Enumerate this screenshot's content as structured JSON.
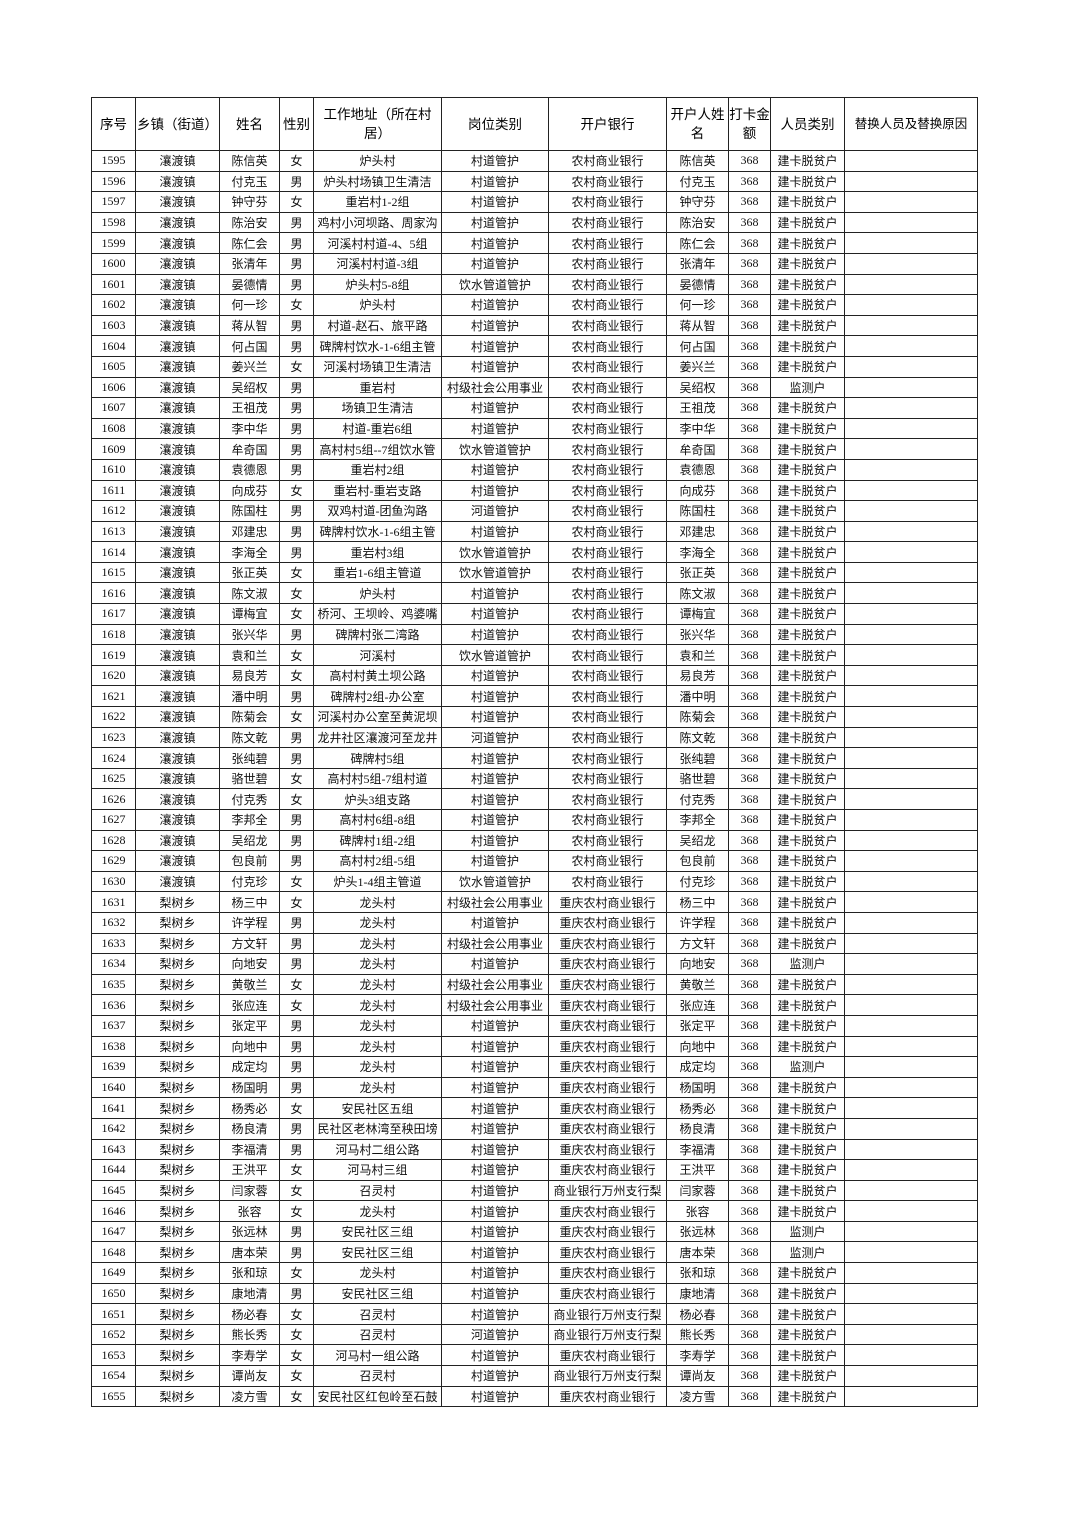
{
  "headers": [
    "序号",
    "乡镇（街道）",
    "姓名",
    "性别",
    "工作地址（所在村居）",
    "岗位类别",
    "开户银行",
    "开户人姓名",
    "打卡金额",
    "人员类别",
    "替换人员及替换原因"
  ],
  "rows": [
    [
      "1595",
      "瀼渡镇",
      "陈信英",
      "女",
      "炉头村",
      "村道管护",
      "农村商业银行",
      "陈信英",
      "368",
      "建卡脱贫户",
      ""
    ],
    [
      "1596",
      "瀼渡镇",
      "付克玉",
      "男",
      "炉头村场镇卫生清洁",
      "村道管护",
      "农村商业银行",
      "付克玉",
      "368",
      "建卡脱贫户",
      ""
    ],
    [
      "1597",
      "瀼渡镇",
      "钟守芬",
      "女",
      "重岩村1-2组",
      "村道管护",
      "农村商业银行",
      "钟守芬",
      "368",
      "建卡脱贫户",
      ""
    ],
    [
      "1598",
      "瀼渡镇",
      "陈治安",
      "男",
      "鸡村小河坝路、周家沟",
      "村道管护",
      "农村商业银行",
      "陈治安",
      "368",
      "建卡脱贫户",
      ""
    ],
    [
      "1599",
      "瀼渡镇",
      "陈仁会",
      "男",
      "河溪村村道-4、5组",
      "村道管护",
      "农村商业银行",
      "陈仁会",
      "368",
      "建卡脱贫户",
      ""
    ],
    [
      "1600",
      "瀼渡镇",
      "张清年",
      "男",
      "河溪村村道-3组",
      "村道管护",
      "农村商业银行",
      "张清年",
      "368",
      "建卡脱贫户",
      ""
    ],
    [
      "1601",
      "瀼渡镇",
      "晏德情",
      "男",
      "炉头村5-8组",
      "饮水管道管护",
      "农村商业银行",
      "晏德情",
      "368",
      "建卡脱贫户",
      ""
    ],
    [
      "1602",
      "瀼渡镇",
      "何一珍",
      "女",
      "炉头村",
      "村道管护",
      "农村商业银行",
      "何一珍",
      "368",
      "建卡脱贫户",
      ""
    ],
    [
      "1603",
      "瀼渡镇",
      "蒋从智",
      "男",
      "村道-赵石、旅平路",
      "村道管护",
      "农村商业银行",
      "蒋从智",
      "368",
      "建卡脱贫户",
      ""
    ],
    [
      "1604",
      "瀼渡镇",
      "何占国",
      "男",
      "碑牌村饮水-1-6组主管",
      "村道管护",
      "农村商业银行",
      "何占国",
      "368",
      "建卡脱贫户",
      ""
    ],
    [
      "1605",
      "瀼渡镇",
      "姜兴兰",
      "女",
      "河溪村场镇卫生清洁",
      "村道管护",
      "农村商业银行",
      "姜兴兰",
      "368",
      "建卡脱贫户",
      ""
    ],
    [
      "1606",
      "瀼渡镇",
      "吴绍权",
      "男",
      "重岩村",
      "村级社会公用事业",
      "农村商业银行",
      "吴绍权",
      "368",
      "监测户",
      ""
    ],
    [
      "1607",
      "瀼渡镇",
      "王祖茂",
      "男",
      "场镇卫生清洁",
      "村道管护",
      "农村商业银行",
      "王祖茂",
      "368",
      "建卡脱贫户",
      ""
    ],
    [
      "1608",
      "瀼渡镇",
      "李中华",
      "男",
      "村道-重岩6组",
      "村道管护",
      "农村商业银行",
      "李中华",
      "368",
      "建卡脱贫户",
      ""
    ],
    [
      "1609",
      "瀼渡镇",
      "牟奇国",
      "男",
      "高村村5组--7组饮水管",
      "饮水管道管护",
      "农村商业银行",
      "牟奇国",
      "368",
      "建卡脱贫户",
      ""
    ],
    [
      "1610",
      "瀼渡镇",
      "袁德恩",
      "男",
      "重岩村2组",
      "村道管护",
      "农村商业银行",
      "袁德恩",
      "368",
      "建卡脱贫户",
      ""
    ],
    [
      "1611",
      "瀼渡镇",
      "向成芬",
      "女",
      "重岩村-重岩支路",
      "村道管护",
      "农村商业银行",
      "向成芬",
      "368",
      "建卡脱贫户",
      ""
    ],
    [
      "1612",
      "瀼渡镇",
      "陈国柱",
      "男",
      "双鸡村道-团鱼沟路",
      "河道管护",
      "农村商业银行",
      "陈国柱",
      "368",
      "建卡脱贫户",
      ""
    ],
    [
      "1613",
      "瀼渡镇",
      "邓建忠",
      "男",
      "碑牌村饮水-1-6组主管",
      "村道管护",
      "农村商业银行",
      "邓建忠",
      "368",
      "建卡脱贫户",
      ""
    ],
    [
      "1614",
      "瀼渡镇",
      "李海全",
      "男",
      "重岩村3组",
      "饮水管道管护",
      "农村商业银行",
      "李海全",
      "368",
      "建卡脱贫户",
      ""
    ],
    [
      "1615",
      "瀼渡镇",
      "张正英",
      "女",
      "重岩1-6组主管道",
      "饮水管道管护",
      "农村商业银行",
      "张正英",
      "368",
      "建卡脱贫户",
      ""
    ],
    [
      "1616",
      "瀼渡镇",
      "陈文淑",
      "女",
      "炉头村",
      "村道管护",
      "农村商业银行",
      "陈文淑",
      "368",
      "建卡脱贫户",
      ""
    ],
    [
      "1617",
      "瀼渡镇",
      "谭梅宜",
      "女",
      "桥河、王坝岭、鸡婆嘴",
      "村道管护",
      "农村商业银行",
      "谭梅宜",
      "368",
      "建卡脱贫户",
      ""
    ],
    [
      "1618",
      "瀼渡镇",
      "张兴华",
      "男",
      "碑牌村张二湾路",
      "村道管护",
      "农村商业银行",
      "张兴华",
      "368",
      "建卡脱贫户",
      ""
    ],
    [
      "1619",
      "瀼渡镇",
      "袁和兰",
      "女",
      "河溪村",
      "饮水管道管护",
      "农村商业银行",
      "袁和兰",
      "368",
      "建卡脱贫户",
      ""
    ],
    [
      "1620",
      "瀼渡镇",
      "易良芳",
      "女",
      "高村村黄土坝公路",
      "村道管护",
      "农村商业银行",
      "易良芳",
      "368",
      "建卡脱贫户",
      ""
    ],
    [
      "1621",
      "瀼渡镇",
      "潘中明",
      "男",
      "碑牌村2组-办公室",
      "村道管护",
      "农村商业银行",
      "潘中明",
      "368",
      "建卡脱贫户",
      ""
    ],
    [
      "1622",
      "瀼渡镇",
      "陈菊会",
      "女",
      "河溪村办公室至黄泥坝",
      "村道管护",
      "农村商业银行",
      "陈菊会",
      "368",
      "建卡脱贫户",
      ""
    ],
    [
      "1623",
      "瀼渡镇",
      "陈文乾",
      "男",
      "龙井社区瀼渡河至龙井",
      "河道管护",
      "农村商业银行",
      "陈文乾",
      "368",
      "建卡脱贫户",
      ""
    ],
    [
      "1624",
      "瀼渡镇",
      "张纯碧",
      "男",
      "碑牌村5组",
      "村道管护",
      "农村商业银行",
      "张纯碧",
      "368",
      "建卡脱贫户",
      ""
    ],
    [
      "1625",
      "瀼渡镇",
      "骆世碧",
      "女",
      "高村村5组-7组村道",
      "村道管护",
      "农村商业银行",
      "骆世碧",
      "368",
      "建卡脱贫户",
      ""
    ],
    [
      "1626",
      "瀼渡镇",
      "付克秀",
      "女",
      "炉头3组支路",
      "村道管护",
      "农村商业银行",
      "付克秀",
      "368",
      "建卡脱贫户",
      ""
    ],
    [
      "1627",
      "瀼渡镇",
      "李邦全",
      "男",
      "高村村6组-8组",
      "村道管护",
      "农村商业银行",
      "李邦全",
      "368",
      "建卡脱贫户",
      ""
    ],
    [
      "1628",
      "瀼渡镇",
      "吴绍龙",
      "男",
      "碑牌村1组-2组",
      "村道管护",
      "农村商业银行",
      "吴绍龙",
      "368",
      "建卡脱贫户",
      ""
    ],
    [
      "1629",
      "瀼渡镇",
      "包良前",
      "男",
      "高村村2组-5组",
      "村道管护",
      "农村商业银行",
      "包良前",
      "368",
      "建卡脱贫户",
      ""
    ],
    [
      "1630",
      "瀼渡镇",
      "付克珍",
      "女",
      "炉头1-4组主管道",
      "饮水管道管护",
      "农村商业银行",
      "付克珍",
      "368",
      "建卡脱贫户",
      ""
    ],
    [
      "1631",
      "梨树乡",
      "杨三中",
      "女",
      "龙头村",
      "村级社会公用事业",
      "重庆农村商业银行",
      "杨三中",
      "368",
      "建卡脱贫户",
      ""
    ],
    [
      "1632",
      "梨树乡",
      "许学程",
      "男",
      "龙头村",
      "村道管护",
      "重庆农村商业银行",
      "许学程",
      "368",
      "建卡脱贫户",
      ""
    ],
    [
      "1633",
      "梨树乡",
      "方文轩",
      "男",
      "龙头村",
      "村级社会公用事业",
      "重庆农村商业银行",
      "方文轩",
      "368",
      "建卡脱贫户",
      ""
    ],
    [
      "1634",
      "梨树乡",
      "向地安",
      "男",
      "龙头村",
      "村道管护",
      "重庆农村商业银行",
      "向地安",
      "368",
      "监测户",
      ""
    ],
    [
      "1635",
      "梨树乡",
      "黄敬兰",
      "女",
      "龙头村",
      "村级社会公用事业",
      "重庆农村商业银行",
      "黄敬兰",
      "368",
      "建卡脱贫户",
      ""
    ],
    [
      "1636",
      "梨树乡",
      "张应连",
      "女",
      "龙头村",
      "村级社会公用事业",
      "重庆农村商业银行",
      "张应连",
      "368",
      "建卡脱贫户",
      ""
    ],
    [
      "1637",
      "梨树乡",
      "张定平",
      "男",
      "龙头村",
      "村道管护",
      "重庆农村商业银行",
      "张定平",
      "368",
      "建卡脱贫户",
      ""
    ],
    [
      "1638",
      "梨树乡",
      "向地中",
      "男",
      "龙头村",
      "村道管护",
      "重庆农村商业银行",
      "向地中",
      "368",
      "建卡脱贫户",
      ""
    ],
    [
      "1639",
      "梨树乡",
      "成定均",
      "男",
      "龙头村",
      "村道管护",
      "重庆农村商业银行",
      "成定均",
      "368",
      "监测户",
      ""
    ],
    [
      "1640",
      "梨树乡",
      "杨国明",
      "男",
      "龙头村",
      "村道管护",
      "重庆农村商业银行",
      "杨国明",
      "368",
      "建卡脱贫户",
      ""
    ],
    [
      "1641",
      "梨树乡",
      "杨秀必",
      "女",
      "安民社区五组",
      "村道管护",
      "重庆农村商业银行",
      "杨秀必",
      "368",
      "建卡脱贫户",
      ""
    ],
    [
      "1642",
      "梨树乡",
      "杨良清",
      "男",
      "民社区老林湾至秧田塝",
      "村道管护",
      "重庆农村商业银行",
      "杨良清",
      "368",
      "建卡脱贫户",
      ""
    ],
    [
      "1643",
      "梨树乡",
      "李福清",
      "男",
      "河马村二组公路",
      "村道管护",
      "重庆农村商业银行",
      "李福清",
      "368",
      "建卡脱贫户",
      ""
    ],
    [
      "1644",
      "梨树乡",
      "王洪平",
      "女",
      "河马村三组",
      "村道管护",
      "重庆农村商业银行",
      "王洪平",
      "368",
      "建卡脱贫户",
      ""
    ],
    [
      "1645",
      "梨树乡",
      "闫家蓉",
      "女",
      "召灵村",
      "村道管护",
      "商业银行万州支行梨",
      "闫家蓉",
      "368",
      "建卡脱贫户",
      ""
    ],
    [
      "1646",
      "梨树乡",
      "张容",
      "女",
      "龙头村",
      "村道管护",
      "重庆农村商业银行",
      "张容",
      "368",
      "建卡脱贫户",
      ""
    ],
    [
      "1647",
      "梨树乡",
      "张远林",
      "男",
      "安民社区三组",
      "村道管护",
      "重庆农村商业银行",
      "张远林",
      "368",
      "监测户",
      ""
    ],
    [
      "1648",
      "梨树乡",
      "唐本荣",
      "男",
      "安民社区三组",
      "村道管护",
      "重庆农村商业银行",
      "唐本荣",
      "368",
      "监测户",
      ""
    ],
    [
      "1649",
      "梨树乡",
      "张和琼",
      "女",
      "龙头村",
      "村道管护",
      "重庆农村商业银行",
      "张和琼",
      "368",
      "建卡脱贫户",
      ""
    ],
    [
      "1650",
      "梨树乡",
      "康地清",
      "男",
      "安民社区三组",
      "村道管护",
      "重庆农村商业银行",
      "康地清",
      "368",
      "建卡脱贫户",
      ""
    ],
    [
      "1651",
      "梨树乡",
      "杨必春",
      "女",
      "召灵村",
      "村道管护",
      "商业银行万州支行梨",
      "杨必春",
      "368",
      "建卡脱贫户",
      ""
    ],
    [
      "1652",
      "梨树乡",
      "熊长秀",
      "女",
      "召灵村",
      "河道管护",
      "商业银行万州支行梨",
      "熊长秀",
      "368",
      "建卡脱贫户",
      ""
    ],
    [
      "1653",
      "梨树乡",
      "李寿学",
      "女",
      "河马村一组公路",
      "村道管护",
      "重庆农村商业银行",
      "李寿学",
      "368",
      "建卡脱贫户",
      ""
    ],
    [
      "1654",
      "梨树乡",
      "谭尚友",
      "女",
      "召灵村",
      "村道管护",
      "商业银行万州支行梨",
      "谭尚友",
      "368",
      "建卡脱贫户",
      ""
    ],
    [
      "1655",
      "梨树乡",
      "凌方雪",
      "女",
      "安民社区红包岭至石鼓",
      "村道管护",
      "重庆农村商业银行",
      "凌方雪",
      "368",
      "建卡脱贫户",
      ""
    ]
  ]
}
